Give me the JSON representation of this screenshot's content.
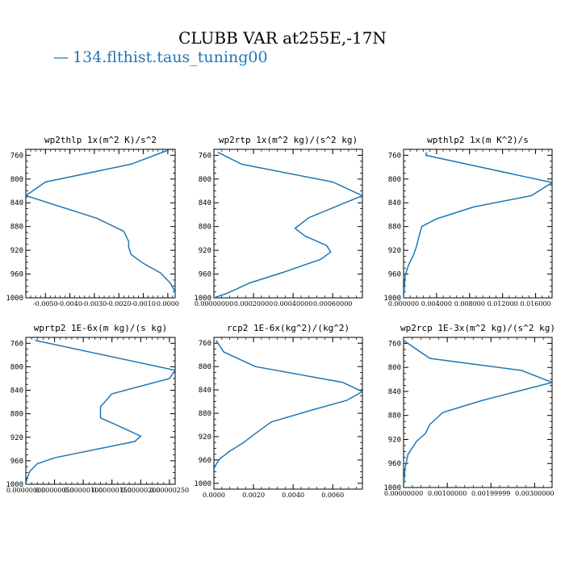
{
  "title": "CLUBB VAR at255E,-17N",
  "legend": {
    "dash": "—",
    "label": "134.flthist.taus_tuning00",
    "color": "#1f77b4"
  },
  "chart_data": [
    {
      "type": "line",
      "title": "wp2thlp  1x(m^2 K)/s^2",
      "xlim": [
        -0.0058,
        0.0003
      ],
      "ylim": [
        1000,
        750
      ],
      "yticks": [
        760,
        800,
        840,
        880,
        920,
        960,
        1000
      ],
      "xticks": [
        -0.005,
        -0.004,
        -0.003,
        -0.002,
        -0.001,
        0.0
      ],
      "xtick_labels": [
        "-0.0050",
        "-0.0040",
        "-0.0030",
        "-0.0020",
        "-0.0010",
        "0.0000"
      ],
      "series": [
        {
          "color": "#1f77b4",
          "x": [
            0.0001,
            -0.0015,
            -0.005,
            -0.0058,
            -0.0029,
            -0.0018,
            -0.0016,
            -0.0016,
            -0.0015,
            -0.001,
            -0.0003,
            0.0001,
            0.0003,
            0.0003
          ],
          "y": [
            750,
            775,
            805,
            828,
            866,
            888,
            905,
            915,
            927,
            942,
            958,
            975,
            990,
            1000
          ]
        }
      ]
    },
    {
      "type": "line",
      "title": "wp2rtp  1x(m^2 kg)/(s^2 kg)",
      "xlim": [
        0.0,
        0.00075
      ],
      "ylim": [
        1000,
        750
      ],
      "yticks": [
        760,
        800,
        840,
        880,
        920,
        960,
        1000
      ],
      "xticks": [
        0.0,
        0.0002,
        0.0004,
        0.0006
      ],
      "xtick_labels": [
        "0.00000000",
        "0.00020000",
        "0.00040000",
        "0.00060000"
      ],
      "series": [
        {
          "color": "#1f77b4",
          "x": [
            2e-05,
            0.00014,
            0.0006,
            0.00075,
            0.00048,
            0.00041,
            0.00046,
            0.00057,
            0.00059,
            0.00054,
            0.00035,
            0.00018,
            7e-05,
            0.0
          ],
          "y": [
            755,
            775,
            805,
            828,
            865,
            883,
            896,
            912,
            923,
            935,
            957,
            975,
            992,
            1000
          ]
        }
      ]
    },
    {
      "type": "line",
      "title": "wpthlp2  1x(m K^2)/s",
      "xlim": [
        0.0,
        0.018
      ],
      "ylim": [
        1000,
        750
      ],
      "yticks": [
        760,
        800,
        840,
        880,
        920,
        960,
        1000
      ],
      "xticks": [
        0.0,
        0.004,
        0.008,
        0.012,
        0.016
      ],
      "xtick_labels": [
        "0.000000",
        "0.004000",
        "0.008000",
        "0.012000",
        "0.016000"
      ],
      "series": [
        {
          "color": "#1f77b4",
          "x": [
            0.0028,
            0.0027,
            0.018,
            0.0155,
            0.0085,
            0.004,
            0.0022,
            0.0018,
            0.0016,
            0.0012,
            0.0006,
            0.0002,
            0.0
          ],
          "y": [
            755,
            760,
            806,
            828,
            847,
            867,
            880,
            900,
            912,
            928,
            945,
            962,
            1000
          ]
        }
      ]
    },
    {
      "type": "line",
      "title": "wprtp2  1E-6x(m kg)/(s kg)",
      "xlim": [
        0.0,
        2.6e-06
      ],
      "ylim": [
        1000,
        750
      ],
      "yticks": [
        760,
        800,
        840,
        880,
        920,
        960,
        1000
      ],
      "xticks": [
        0.0,
        5e-07,
        1e-06,
        1.5e-06,
        2e-06,
        2.5e-06
      ],
      "xtick_labels": [
        "0.00000000",
        "0.00000050",
        "0.00000100",
        "0.00000150",
        "0.00000200",
        "0.00000250"
      ],
      "series": [
        {
          "color": "#1f77b4",
          "x": [
            1.6e-07,
            2.6e-06,
            2.5e-06,
            1.5e-06,
            1.3e-06,
            1.3e-06,
            1.6e-06,
            2e-06,
            1.9e-06,
            5e-07,
            2e-07,
            7e-08,
            2e-08,
            0.0
          ],
          "y": [
            755,
            806,
            820,
            846,
            868,
            887,
            900,
            918,
            927,
            955,
            965,
            978,
            990,
            1000
          ]
        }
      ]
    },
    {
      "type": "line",
      "title": "rcp2  1E-6x(kg^2)/(kg^2)",
      "xlim": [
        0.0,
        0.0075
      ],
      "ylim": [
        1010,
        750
      ],
      "yticks": [
        760,
        800,
        840,
        880,
        920,
        960,
        1000
      ],
      "xticks": [
        0.0,
        0.002,
        0.004,
        0.006
      ],
      "xtick_labels": [
        "0.0000",
        "0.0020",
        "0.0040",
        "0.0060"
      ],
      "series": [
        {
          "color": "#1f77b4",
          "x": [
            0.0001,
            0.0005,
            0.0021,
            0.0065,
            0.0075,
            0.0067,
            0.0049,
            0.0029,
            0.002,
            0.0015,
            0.0008,
            0.0003,
            0.0001,
            0.0
          ],
          "y": [
            755,
            775,
            800,
            827,
            843,
            858,
            875,
            895,
            917,
            930,
            945,
            958,
            968,
            975
          ]
        }
      ]
    },
    {
      "type": "line",
      "title": "wp2rcp  1E-3x(m^2 kg)/(s^2 kg)",
      "xlim": [
        0.0,
        0.0034
      ],
      "ylim": [
        1000,
        750
      ],
      "yticks": [
        760,
        800,
        840,
        880,
        920,
        960,
        1000
      ],
      "xticks": [
        0.0,
        0.001,
        0.002,
        0.003
      ],
      "xtick_labels": [
        "0.00000000",
        "0.00100000",
        "0.00199999",
        "0.00300000"
      ],
      "series": [
        {
          "color": "#1f77b4",
          "x": [
            0.0,
            0.0001,
            0.0006,
            0.0027,
            0.0034,
            0.0018,
            0.0009,
            0.0006,
            0.0005,
            0.0003,
            0.0001,
            3e-05,
            0.0
          ],
          "y": [
            755,
            760,
            785,
            805,
            825,
            855,
            875,
            895,
            910,
            923,
            945,
            970,
            1000
          ]
        }
      ]
    }
  ]
}
